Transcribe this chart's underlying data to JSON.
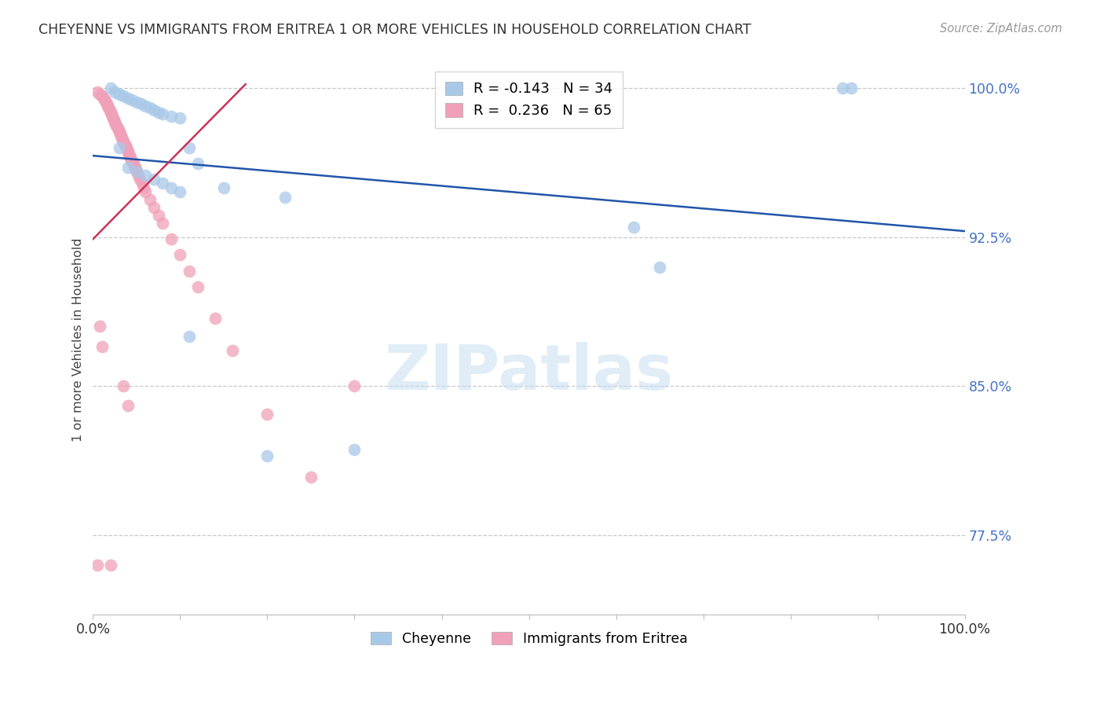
{
  "title": "CHEYENNE VS IMMIGRANTS FROM ERITREA 1 OR MORE VEHICLES IN HOUSEHOLD CORRELATION CHART",
  "source": "Source: ZipAtlas.com",
  "ylabel": "1 or more Vehicles in Household",
  "xlim": [
    0.0,
    1.0
  ],
  "ylim": [
    0.735,
    1.012
  ],
  "yticks": [
    0.775,
    0.85,
    0.925,
    1.0
  ],
  "ytick_labels": [
    "77.5%",
    "85.0%",
    "92.5%",
    "100.0%"
  ],
  "cheyenne_color": "#a8c8e8",
  "eritrea_color": "#f0a0b8",
  "cheyenne_line_color": "#2255aa",
  "eritrea_line_color": "#cc3355",
  "cheyenne_R": -0.143,
  "cheyenne_N": 34,
  "eritrea_R": 0.236,
  "eritrea_N": 65,
  "legend_label_cheyenne": "Cheyenne",
  "legend_label_eritrea": "Immigrants from Eritrea",
  "cheyenne_x": [
    0.02,
    0.025,
    0.03,
    0.035,
    0.04,
    0.045,
    0.05,
    0.055,
    0.06,
    0.065,
    0.07,
    0.075,
    0.08,
    0.09,
    0.1,
    0.11,
    0.12,
    0.15,
    0.22,
    0.3,
    0.62,
    0.65,
    0.86,
    0.87,
    0.03,
    0.04,
    0.05,
    0.06,
    0.07,
    0.08,
    0.09,
    0.1,
    0.11,
    0.2
  ],
  "cheyenne_y": [
    1.0,
    0.998,
    0.997,
    0.996,
    0.995,
    0.994,
    0.993,
    0.992,
    0.991,
    0.99,
    0.989,
    0.988,
    0.987,
    0.986,
    0.985,
    0.97,
    0.962,
    0.95,
    0.945,
    0.818,
    0.93,
    0.91,
    1.0,
    1.0,
    0.97,
    0.96,
    0.958,
    0.956,
    0.954,
    0.952,
    0.95,
    0.948,
    0.875,
    0.815
  ],
  "eritrea_x": [
    0.005,
    0.008,
    0.01,
    0.012,
    0.013,
    0.015,
    0.016,
    0.017,
    0.018,
    0.019,
    0.02,
    0.021,
    0.022,
    0.023,
    0.024,
    0.025,
    0.026,
    0.027,
    0.028,
    0.029,
    0.03,
    0.031,
    0.032,
    0.033,
    0.034,
    0.035,
    0.036,
    0.037,
    0.038,
    0.039,
    0.04,
    0.041,
    0.042,
    0.043,
    0.044,
    0.045,
    0.046,
    0.047,
    0.048,
    0.049,
    0.05,
    0.052,
    0.054,
    0.056,
    0.058,
    0.06,
    0.065,
    0.07,
    0.075,
    0.08,
    0.09,
    0.1,
    0.11,
    0.12,
    0.14,
    0.16,
    0.2,
    0.25,
    0.3,
    0.005,
    0.008,
    0.01,
    0.035,
    0.04,
    0.02
  ],
  "eritrea_y": [
    0.998,
    0.997,
    0.996,
    0.995,
    0.994,
    0.993,
    0.992,
    0.991,
    0.99,
    0.989,
    0.988,
    0.987,
    0.986,
    0.985,
    0.984,
    0.983,
    0.982,
    0.981,
    0.98,
    0.979,
    0.978,
    0.977,
    0.976,
    0.975,
    0.974,
    0.973,
    0.972,
    0.971,
    0.97,
    0.969,
    0.968,
    0.967,
    0.966,
    0.965,
    0.964,
    0.963,
    0.962,
    0.961,
    0.96,
    0.959,
    0.958,
    0.956,
    0.954,
    0.952,
    0.95,
    0.948,
    0.944,
    0.94,
    0.936,
    0.932,
    0.924,
    0.916,
    0.908,
    0.9,
    0.884,
    0.868,
    0.836,
    0.804,
    0.85,
    0.76,
    0.88,
    0.87,
    0.85,
    0.84,
    0.76
  ],
  "blue_line_x": [
    0.0,
    1.0
  ],
  "blue_line_y": [
    0.966,
    0.928
  ],
  "pink_line_x": [
    0.0,
    0.175
  ],
  "pink_line_y": [
    0.924,
    1.002
  ]
}
